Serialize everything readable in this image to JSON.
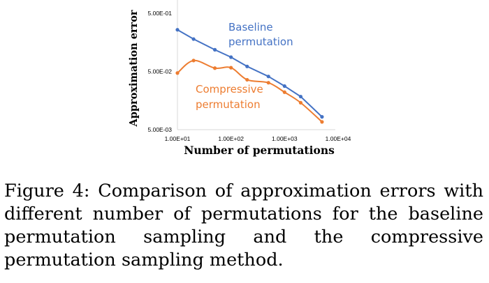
{
  "chart_data": {
    "type": "line",
    "xlabel": "Number of permutations",
    "ylabel": "Approximation error",
    "x_scale": "log",
    "y_scale": "log",
    "xlim": [
      10,
      10000
    ],
    "ylim": [
      0.005,
      0.5
    ],
    "x_ticks": [
      "1.00E+01",
      "1.00E+02",
      "1.00E+03",
      "1.00E+04"
    ],
    "y_ticks": [
      "5.00E-01",
      "5.00E-02",
      "5.00E-03"
    ],
    "grid": false,
    "legend": "none",
    "series": [
      {
        "name": "Baseline permutation",
        "color": "#4472C4",
        "x": [
          10,
          20,
          50,
          100,
          200,
          500,
          1000,
          2000,
          5000
        ],
        "y": [
          0.26,
          0.18,
          0.118,
          0.088,
          0.061,
          0.041,
          0.028,
          0.0185,
          0.0083
        ]
      },
      {
        "name": "Compressive permutation",
        "color": "#ED7D31",
        "x": [
          10,
          20,
          50,
          100,
          200,
          500,
          1000,
          2000,
          5000
        ],
        "y": [
          0.047,
          0.077,
          0.057,
          0.058,
          0.036,
          0.032,
          0.022,
          0.0145,
          0.0068
        ]
      }
    ]
  },
  "series_labels": [
    {
      "line1": "Baseline",
      "line2": "permutation"
    },
    {
      "line1": "Compressive",
      "line2": "permutation"
    }
  ],
  "caption": "Figure 4: Comparison of approximation errors with different number of permutations for the baseline permutation sampling and the compressive permutation sampling method."
}
